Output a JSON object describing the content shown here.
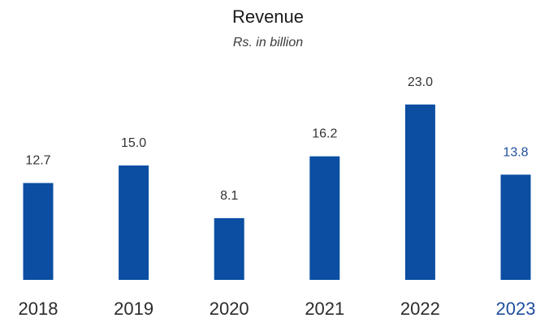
{
  "chart_data": {
    "type": "bar",
    "title": "Revenue",
    "subtitle": "Rs. in billion",
    "categories": [
      "2018",
      "2019",
      "2020",
      "2021",
      "2022",
      "2023"
    ],
    "values": [
      12.7,
      15.0,
      8.1,
      16.2,
      23.0,
      13.8
    ],
    "value_labels": [
      "12.7",
      "15.0",
      "8.1",
      "16.2",
      "23.0",
      "13.8"
    ],
    "highlight_category": "2023",
    "ylim": [
      0,
      25
    ],
    "grid": false,
    "colors": {
      "bar": "#0b4ea2",
      "label": "#333333",
      "highlight_label": "#1f4e9c"
    }
  }
}
